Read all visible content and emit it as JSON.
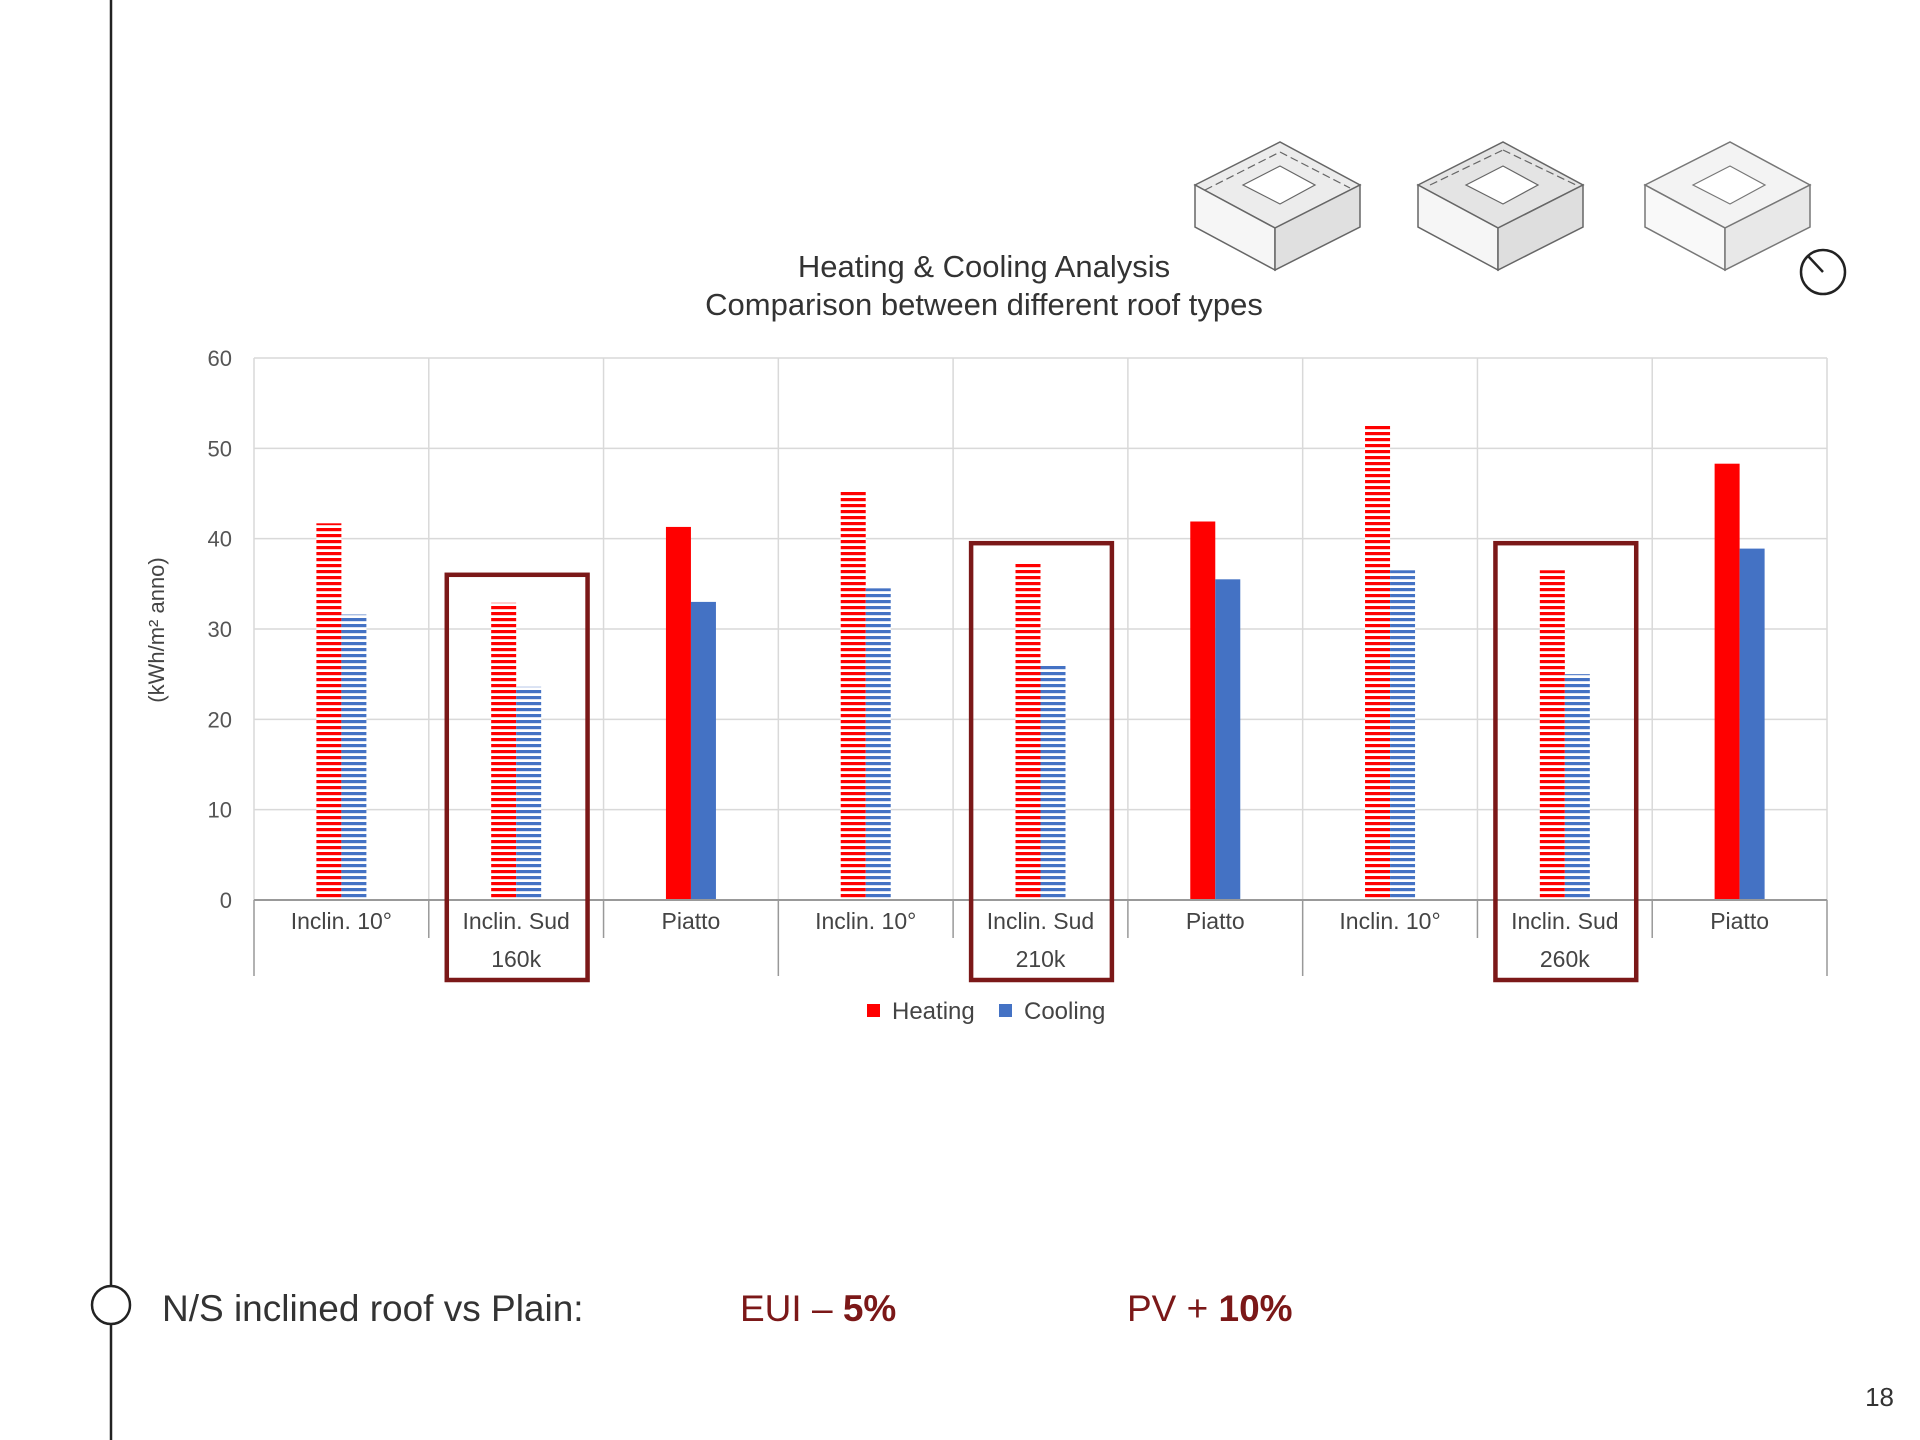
{
  "chart_data": {
    "type": "bar",
    "title": "Heating & Cooling Analysis",
    "subtitle": "Comparison between different roof types",
    "ylabel": "(kWh/m² anno)",
    "xlabel": "",
    "ylim": [
      0,
      60
    ],
    "yticks": [
      0,
      10,
      20,
      30,
      40,
      50,
      60
    ],
    "grid": true,
    "legend_position": "bottom-center",
    "categories": [
      "Inclin. 10°",
      "Inclin. Sud",
      "Piatto",
      "Inclin. 10°",
      "Inclin. Sud",
      "Piatto",
      "Inclin. 10°",
      "Inclin. Sud",
      "Piatto"
    ],
    "groups": [
      {
        "label": "",
        "members": [
          0,
          1,
          2
        ],
        "center_label": "160k"
      },
      {
        "label": "",
        "members": [
          3,
          4,
          5
        ],
        "center_label": "210k"
      },
      {
        "label": "",
        "members": [
          6,
          7,
          8
        ],
        "center_label": "260k"
      }
    ],
    "group_labels": [
      "160k",
      "210k",
      "260k"
    ],
    "highlighted_categories": [
      1,
      4,
      7
    ],
    "hatched_categories": [
      0,
      1,
      3,
      4,
      6,
      7
    ],
    "series": [
      {
        "name": "Heating",
        "color": "#ff0000",
        "values": [
          41.7,
          32.9,
          41.3,
          45.4,
          37.2,
          41.9,
          52.5,
          36.5,
          48.3
        ]
      },
      {
        "name": "Cooling",
        "color": "#4472c4",
        "values": [
          31.6,
          23.6,
          33.0,
          34.5,
          26.0,
          35.5,
          36.5,
          25.0,
          38.9
        ]
      }
    ]
  },
  "footer": {
    "statement": "N/S inclined roof vs Plain:",
    "eui_prefix": "EUI – ",
    "eui_value": "5%",
    "pv_prefix": "PV + ",
    "pv_value": "10%"
  },
  "page_number": "18",
  "colors": {
    "highlight_box": "#7b1818",
    "timeline": "#222222",
    "grid": "#d9d9d9"
  }
}
